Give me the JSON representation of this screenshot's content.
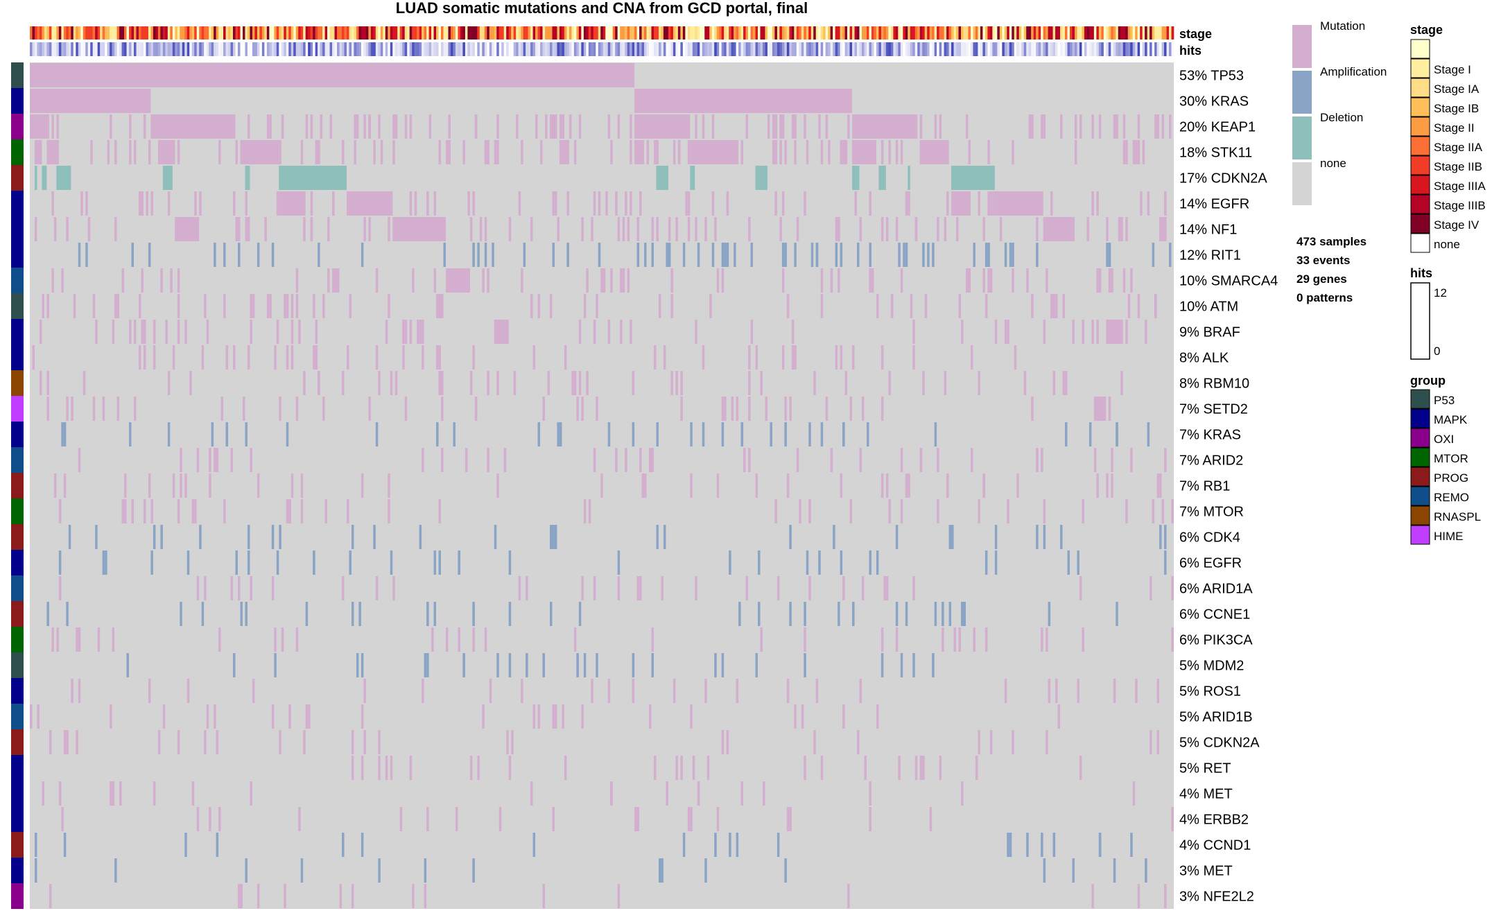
{
  "chart_data": {
    "type": "heatmap",
    "title": "LUAD somatic mutations and CNA from GCD portal, final",
    "n_samples": 473,
    "annotation_tracks": [
      "stage",
      "hits"
    ],
    "genes": [
      {
        "label": "53% TP53",
        "group": "P53"
      },
      {
        "label": "30% KRAS",
        "group": "MAPK"
      },
      {
        "label": "20% KEAP1",
        "group": "OXI"
      },
      {
        "label": "18% STK11",
        "group": "MTOR"
      },
      {
        "label": "17% CDKN2A",
        "group": "PROG"
      },
      {
        "label": "14% EGFR",
        "group": "MAPK"
      },
      {
        "label": "14% NF1",
        "group": "MAPK"
      },
      {
        "label": "12% RIT1",
        "group": "MAPK"
      },
      {
        "label": "10% SMARCA4",
        "group": "REMO"
      },
      {
        "label": "10% ATM",
        "group": "P53"
      },
      {
        "label": "9% BRAF",
        "group": "MAPK"
      },
      {
        "label": "8% ALK",
        "group": "MAPK"
      },
      {
        "label": "8% RBM10",
        "group": "RNASPL"
      },
      {
        "label": "7% SETD2",
        "group": "HIME"
      },
      {
        "label": "7% KRAS",
        "group": "MAPK"
      },
      {
        "label": "7% ARID2",
        "group": "REMO"
      },
      {
        "label": "7% RB1",
        "group": "PROG"
      },
      {
        "label": "7% MTOR",
        "group": "MTOR"
      },
      {
        "label": "6% CDK4",
        "group": "PROG"
      },
      {
        "label": "6% EGFR",
        "group": "MAPK"
      },
      {
        "label": "6% ARID1A",
        "group": "REMO"
      },
      {
        "label": "6% CCNE1",
        "group": "PROG"
      },
      {
        "label": "6% PIK3CA",
        "group": "MTOR"
      },
      {
        "label": "5% MDM2",
        "group": "P53"
      },
      {
        "label": "5% ROS1",
        "group": "MAPK"
      },
      {
        "label": "5% ARID1B",
        "group": "REMO"
      },
      {
        "label": "5% CDKN2A",
        "group": "PROG"
      },
      {
        "label": "5% RET",
        "group": "MAPK"
      },
      {
        "label": "4% MET",
        "group": "MAPK"
      },
      {
        "label": "4% ERBB2",
        "group": "MAPK"
      },
      {
        "label": "4% CCND1",
        "group": "PROG"
      },
      {
        "label": "3% MET",
        "group": "MAPK"
      },
      {
        "label": "3% NFE2L2",
        "group": "OXI"
      }
    ],
    "alteration_legend": [
      {
        "label": "Mutation",
        "color": "#d4aecf"
      },
      {
        "label": "Amplification",
        "color": "#89a4c5"
      },
      {
        "label": "Deletion",
        "color": "#8fbfbb"
      },
      {
        "label": "none",
        "color": "#d4d4d4"
      }
    ],
    "stats": [
      "473 samples",
      "33 events",
      "29 genes",
      "0 patterns"
    ],
    "stage_legend": {
      "title": "stage",
      "items": [
        {
          "label": "",
          "color": "#ffffcc"
        },
        {
          "label": "Stage I",
          "color": "#ffeda0"
        },
        {
          "label": "Stage IA",
          "color": "#fedd86"
        },
        {
          "label": "Stage IB",
          "color": "#febf5a"
        },
        {
          "label": "Stage II",
          "color": "#fd9d43"
        },
        {
          "label": "Stage IIA",
          "color": "#fc7034"
        },
        {
          "label": "Stage IIB",
          "color": "#f23d26"
        },
        {
          "label": "Stage IIIA",
          "color": "#d91620"
        },
        {
          "label": "Stage IIIB",
          "color": "#b40325"
        },
        {
          "label": "Stage IV",
          "color": "#800026"
        },
        {
          "label": "none",
          "color": "#ffffff"
        }
      ]
    },
    "hits_legend": {
      "title": "hits",
      "max": "12",
      "min": "0"
    },
    "group_legend": {
      "title": "group",
      "items": [
        {
          "label": "P53",
          "color": "#2f4f4f"
        },
        {
          "label": "MAPK",
          "color": "#00008b"
        },
        {
          "label": "OXI",
          "color": "#8b008b"
        },
        {
          "label": "MTOR",
          "color": "#006400"
        },
        {
          "label": "PROG",
          "color": "#8b1a1a"
        },
        {
          "label": "REMO",
          "color": "#104e8b"
        },
        {
          "label": "RNASPL",
          "color": "#8b4500"
        },
        {
          "label": "HIME",
          "color": "#bf3eff"
        }
      ]
    }
  }
}
